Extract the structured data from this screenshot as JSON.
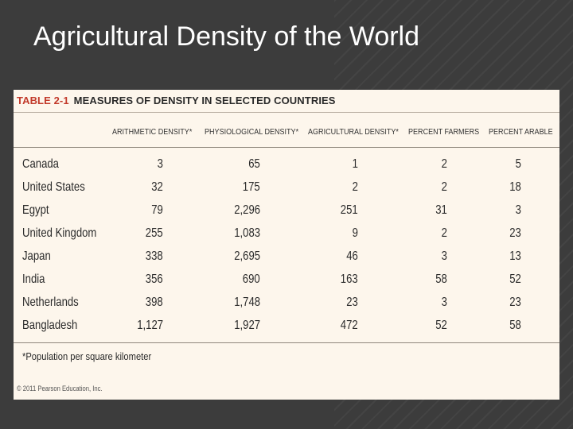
{
  "slide": {
    "title": "Agricultural Density of the World"
  },
  "table": {
    "number": "TABLE 2-1",
    "caption": "MEASURES OF DENSITY IN SELECTED COUNTRIES",
    "columns": [
      "ARITHMETIC DENSITY*",
      "PHYSIOLOGICAL DENSITY*",
      "AGRICULTURAL DENSITY*",
      "PERCENT FARMERS",
      "PERCENT ARABLE"
    ],
    "rows": [
      {
        "country": "Canada",
        "values": [
          "3",
          "65",
          "1",
          "2",
          "5"
        ]
      },
      {
        "country": "United States",
        "values": [
          "32",
          "175",
          "2",
          "2",
          "18"
        ]
      },
      {
        "country": "Egypt",
        "values": [
          "79",
          "2,296",
          "251",
          "31",
          "3"
        ]
      },
      {
        "country": "United Kingdom",
        "values": [
          "255",
          "1,083",
          "9",
          "2",
          "23"
        ]
      },
      {
        "country": "Japan",
        "values": [
          "338",
          "2,695",
          "46",
          "3",
          "13"
        ]
      },
      {
        "country": "India",
        "values": [
          "356",
          "690",
          "163",
          "58",
          "52"
        ]
      },
      {
        "country": "Netherlands",
        "values": [
          "398",
          "1,748",
          "23",
          "3",
          "23"
        ]
      },
      {
        "country": "Bangladesh",
        "values": [
          "1,127",
          "1,927",
          "472",
          "52",
          "58"
        ]
      }
    ],
    "footnote": "*Population per square kilometer",
    "copyright": "© 2011 Pearson Education, Inc."
  }
}
